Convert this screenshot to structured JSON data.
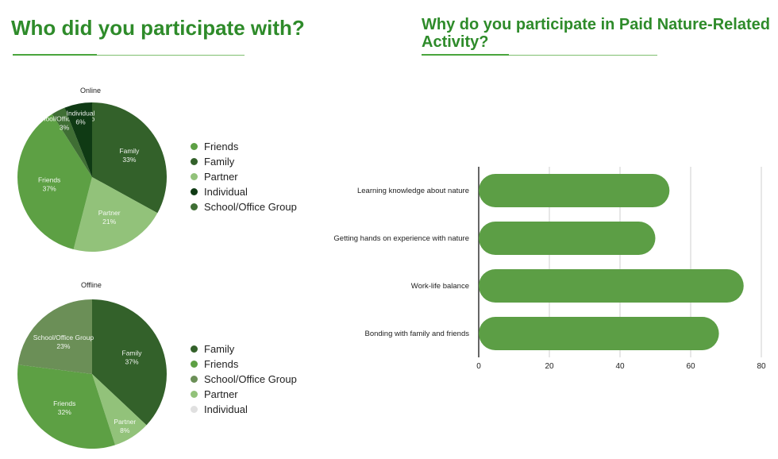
{
  "left_heading": "Who did you participate with?",
  "right_heading": "Why do you participate in Paid Nature-Related Activity?",
  "colors": {
    "heading": "#2e8b2a",
    "Friends": "#5da044",
    "Family": "#33612a",
    "Partner": "#92c27a",
    "Individual": "#0f3a14",
    "School/Office Group": "#3f6e34",
    "School/Office Group (offline)": "#6b8f57",
    "Individual (offline)": "#e0e0e0",
    "bar": "#5c9e45"
  },
  "chart_data": [
    {
      "type": "pie",
      "title": "Online",
      "slices": [
        {
          "label": "Family",
          "value": 33,
          "pct_label": "33%"
        },
        {
          "label": "Partner",
          "value": 21,
          "pct_label": "21%"
        },
        {
          "label": "Friends",
          "value": 37,
          "pct_label": "37%"
        },
        {
          "label": "School/Office Group",
          "value": 3,
          "pct_label": "3%"
        },
        {
          "label": "Individual",
          "value": 6,
          "pct_label": "6%"
        }
      ],
      "legend": [
        "Friends",
        "Family",
        "Partner",
        "Individual",
        "School/Office Group"
      ],
      "legend_position": "right"
    },
    {
      "type": "pie",
      "title": "Offline",
      "slices": [
        {
          "label": "Family",
          "value": 37,
          "pct_label": "37%"
        },
        {
          "label": "Partner",
          "value": 8,
          "pct_label": "8%"
        },
        {
          "label": "Friends",
          "value": 32,
          "pct_label": "32%"
        },
        {
          "label": "School/Office Group",
          "value": 23,
          "pct_label": "23%"
        }
      ],
      "legend": [
        "Family",
        "Friends",
        "School/Office Group",
        "Partner",
        "Individual"
      ],
      "legend_position": "right"
    },
    {
      "type": "bar",
      "orientation": "horizontal",
      "categories": [
        "Learning knowledge about nature",
        "Getting hands on experience with nature",
        "Work-life balance",
        "Bonding with family and friends"
      ],
      "values": [
        54,
        50,
        75,
        68
      ],
      "xlim": [
        0,
        80
      ],
      "xticks": [
        "0",
        "20",
        "40",
        "60",
        "80"
      ],
      "grid": true
    }
  ]
}
